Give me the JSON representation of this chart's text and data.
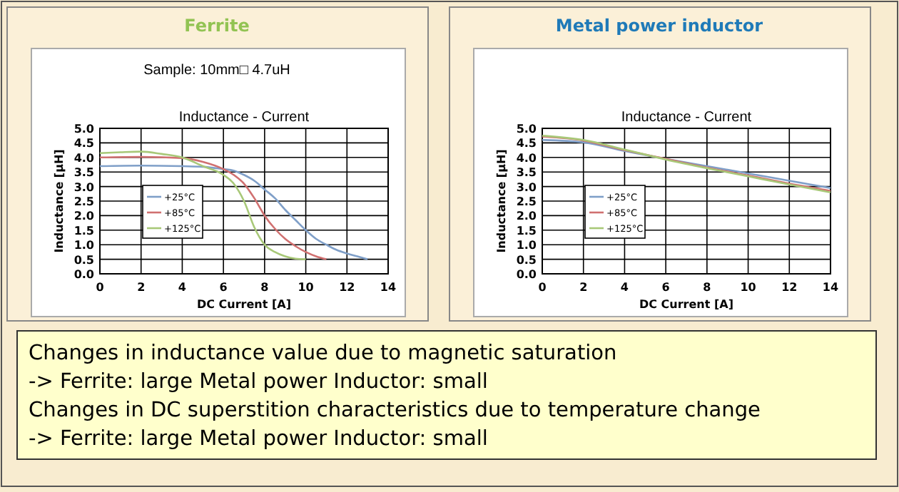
{
  "chart_data": [
    {
      "type": "line",
      "title": "Ferrite",
      "subtitle": "Inductance - Current",
      "annotations": [
        "Sample: 10mm□ 4.7uH"
      ],
      "xlabel": "DC Current [A]",
      "ylabel": "Inductance [µH]",
      "xlim": [
        0,
        14
      ],
      "xticks": [
        0,
        2,
        4,
        6,
        8,
        10,
        12,
        14
      ],
      "ylim": [
        0,
        5
      ],
      "yticks": [
        {
          "value": 0,
          "label": "0.0"
        },
        {
          "value": 0.5,
          "label": "0.5"
        },
        {
          "value": 1,
          "label": "1.0"
        },
        {
          "value": 1.5,
          "label": "1.5"
        },
        {
          "value": 2,
          "label": "2.0"
        },
        {
          "value": 2.5,
          "label": "2.5"
        },
        {
          "value": 3,
          "label": "3.0"
        },
        {
          "value": 3.5,
          "label": "3.5"
        },
        {
          "value": 4,
          "label": "4.0"
        },
        {
          "value": 4.5,
          "label": "4.5"
        },
        {
          "value": 5,
          "label": "5.0"
        }
      ],
      "grid": true,
      "legend": "left",
      "marker": "none",
      "line_style": "solid",
      "series": [
        {
          "name": "+25°C",
          "color": "#7f9fc8",
          "x": [
            0,
            2,
            4,
            5,
            6,
            6.5,
            7,
            7.5,
            8,
            8.5,
            9,
            9.5,
            10,
            10.5,
            11,
            11.5,
            12,
            12.5,
            13
          ],
          "values": [
            3.7,
            3.72,
            3.7,
            3.68,
            3.6,
            3.55,
            3.4,
            3.2,
            2.9,
            2.6,
            2.2,
            1.85,
            1.5,
            1.2,
            1.0,
            0.82,
            0.7,
            0.6,
            0.5
          ]
        },
        {
          "name": "+85°C",
          "color": "#d07070",
          "x": [
            0,
            2,
            4,
            5,
            6,
            6.5,
            7,
            7.5,
            8,
            8.5,
            9,
            9.5,
            10,
            10.5,
            11
          ],
          "values": [
            4.0,
            4.02,
            3.98,
            3.85,
            3.6,
            3.4,
            3.1,
            2.6,
            2.0,
            1.55,
            1.2,
            0.95,
            0.75,
            0.6,
            0.5
          ]
        },
        {
          "name": "+125°C",
          "color": "#a8c878",
          "x": [
            0,
            1,
            2,
            3,
            4,
            5,
            6,
            6.5,
            7,
            7.5,
            8,
            8.5,
            9,
            9.5,
            10
          ],
          "values": [
            4.15,
            4.18,
            4.2,
            4.12,
            4.0,
            3.7,
            3.4,
            3.1,
            2.5,
            1.6,
            1.0,
            0.75,
            0.6,
            0.52,
            0.5
          ]
        }
      ]
    },
    {
      "type": "line",
      "title": "Metal power inductor",
      "subtitle": "Inductance - Current",
      "xlabel": "DC Current [A]",
      "ylabel": "Inductance [µH]",
      "xlim": [
        0,
        14
      ],
      "xticks": [
        0,
        2,
        4,
        6,
        8,
        10,
        12,
        14
      ],
      "ylim": [
        0,
        5
      ],
      "yticks": [
        {
          "value": 0,
          "label": "0.0"
        },
        {
          "value": 0.5,
          "label": "0.5"
        },
        {
          "value": 1,
          "label": "1.0"
        },
        {
          "value": 1.5,
          "label": "1.5"
        },
        {
          "value": 2,
          "label": "2.0"
        },
        {
          "value": 2.5,
          "label": "2.5"
        },
        {
          "value": 3,
          "label": "3.0"
        },
        {
          "value": 3.5,
          "label": "3.5"
        },
        {
          "value": 4,
          "label": "4.0"
        },
        {
          "value": 4.5,
          "label": "4.5"
        },
        {
          "value": 5,
          "label": "5.0"
        }
      ],
      "grid": true,
      "legend": "left",
      "marker": "none",
      "line_style": "solid",
      "series": [
        {
          "name": "+25°C",
          "color": "#7f9fc8",
          "x": [
            0,
            2,
            4,
            6,
            8,
            10,
            12,
            14
          ],
          "values": [
            4.6,
            4.52,
            4.22,
            3.95,
            3.7,
            3.45,
            3.2,
            2.95
          ]
        },
        {
          "name": "+85°C",
          "color": "#d07070",
          "x": [
            0,
            2,
            4,
            6,
            8,
            10,
            12,
            14
          ],
          "values": [
            4.72,
            4.58,
            4.25,
            3.95,
            3.65,
            3.38,
            3.1,
            2.85
          ]
        },
        {
          "name": "+125°C",
          "color": "#a8c878",
          "x": [
            0,
            2,
            4,
            6,
            8,
            10,
            12,
            14
          ],
          "values": [
            4.75,
            4.6,
            4.27,
            3.93,
            3.63,
            3.35,
            3.07,
            2.8
          ]
        }
      ]
    },
    {
      "type": "other",
      "annotations": [
        "Changes in inductance value due to magnetic saturation",
        "-> Ferrite: large  Metal power Inductor: small",
        "Changes in DC superstition characteristics due to temperature change",
        "-> Ferrite: large  Metal power Inductor: small"
      ]
    }
  ]
}
